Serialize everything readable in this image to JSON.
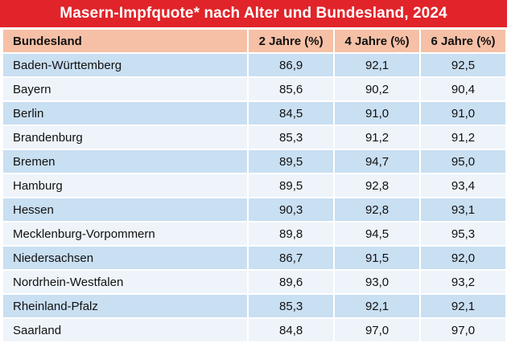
{
  "title": "Masern-Impfquote* nach Alter und Bundesland, 2024",
  "colors": {
    "title_bg": "#e0242a",
    "header_bg": "#f6c0a6",
    "row_odd": "#c9dff2",
    "row_even": "#eef4fa"
  },
  "columns": [
    "Bundesland",
    "2 Jahre (%)",
    "4 Jahre (%)",
    "6 Jahre (%)"
  ],
  "rows": [
    {
      "land": "Baden-Württemberg",
      "j2": "86,9",
      "j4": "92,1",
      "j6": "92,5"
    },
    {
      "land": "Bayern",
      "j2": "85,6",
      "j4": "90,2",
      "j6": "90,4"
    },
    {
      "land": "Berlin",
      "j2": "84,5",
      "j4": "91,0",
      "j6": "91,0"
    },
    {
      "land": "Brandenburg",
      "j2": "85,3",
      "j4": "91,2",
      "j6": "91,2"
    },
    {
      "land": "Bremen",
      "j2": "89,5",
      "j4": "94,7",
      "j6": "95,0"
    },
    {
      "land": "Hamburg",
      "j2": "89,5",
      "j4": "92,8",
      "j6": "93,4"
    },
    {
      "land": "Hessen",
      "j2": "90,3",
      "j4": "92,8",
      "j6": "93,1"
    },
    {
      "land": "Mecklenburg-Vorpommern",
      "j2": "89,8",
      "j4": "94,5",
      "j6": "95,3"
    },
    {
      "land": "Niedersachsen",
      "j2": "86,7",
      "j4": "91,5",
      "j6": "92,0"
    },
    {
      "land": "Nordrhein-Westfalen",
      "j2": "89,6",
      "j4": "93,0",
      "j6": "93,2"
    },
    {
      "land": "Rheinland-Pfalz",
      "j2": "85,3",
      "j4": "92,1",
      "j6": "92,1"
    },
    {
      "land": "Saarland",
      "j2": "84,8",
      "j4": "97,0",
      "j6": "97,0"
    }
  ]
}
